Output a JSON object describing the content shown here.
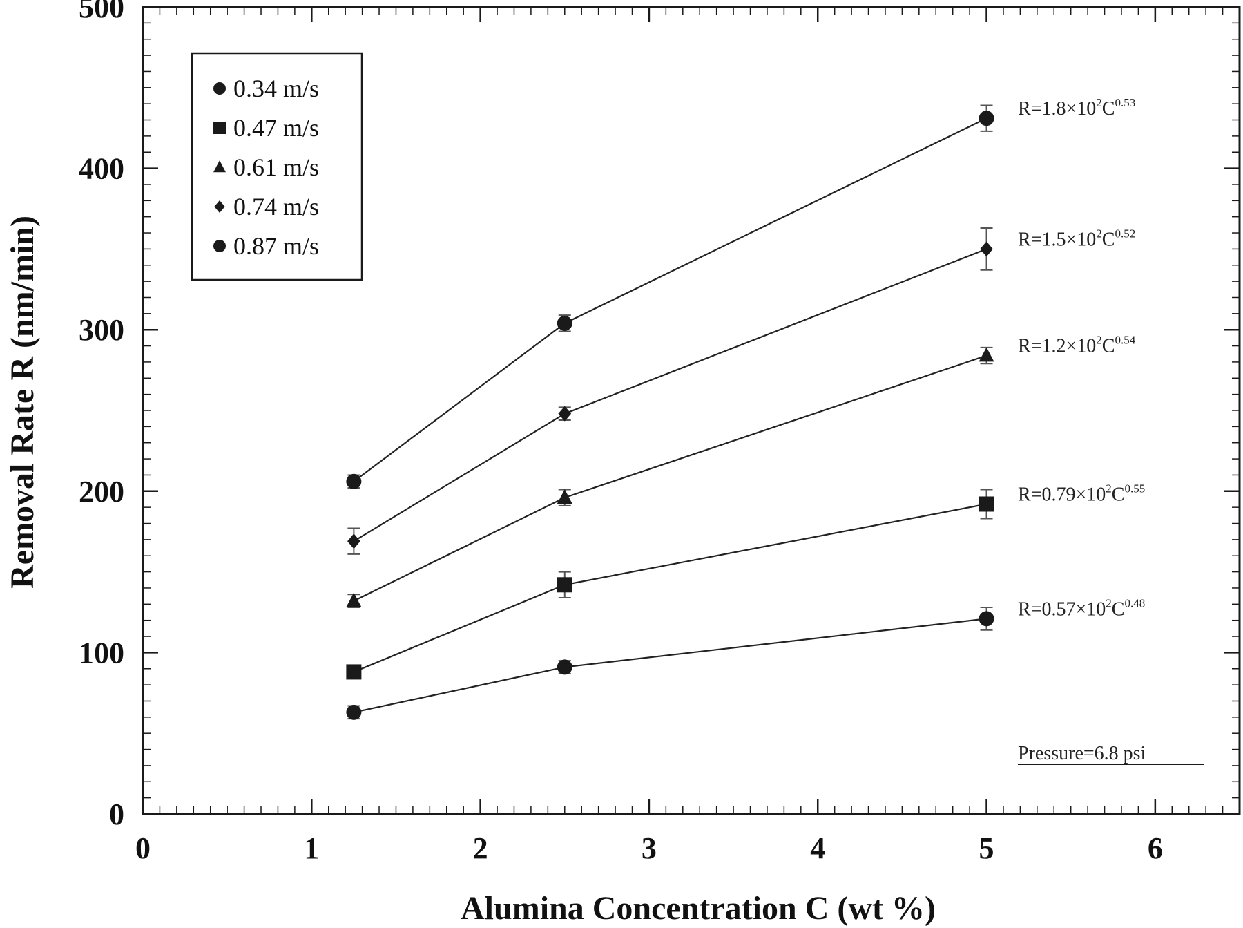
{
  "chart_data": {
    "type": "line",
    "xlabel": "Alumina Concentration C (wt %)",
    "ylabel": "Removal Rate R (nm/min)",
    "xlim": [
      0,
      6.5
    ],
    "ylim": [
      0,
      500
    ],
    "x_ticks": [
      0,
      1,
      2,
      3,
      4,
      5,
      6
    ],
    "y_ticks": [
      0,
      100,
      200,
      300,
      400,
      500
    ],
    "x_tick_labels": [
      "0",
      "1",
      "2",
      "3",
      "4",
      "5",
      "6"
    ],
    "y_tick_labels": [
      "0",
      "100",
      "200",
      "300",
      "400",
      "500"
    ],
    "grid": false,
    "legend_position": "top-left",
    "x": [
      1.25,
      2.5,
      5.0
    ],
    "series": [
      {
        "name": "0.34 m/s",
        "marker": "circle",
        "values": [
          63,
          91,
          121
        ],
        "errors": [
          4,
          4,
          7
        ],
        "fit_prefix": "R=0.57×10",
        "fit_exp1": "2",
        "fit_mid": "C",
        "fit_exp2": "0.48"
      },
      {
        "name": "0.47 m/s",
        "marker": "square",
        "values": [
          88,
          142,
          192
        ],
        "errors": [
          4,
          8,
          9
        ],
        "fit_prefix": "R=0.79×10",
        "fit_exp1": "2",
        "fit_mid": "C",
        "fit_exp2": "0.55"
      },
      {
        "name": "0.61 m/s",
        "marker": "triangle",
        "values": [
          132,
          196,
          284
        ],
        "errors": [
          4,
          5,
          5
        ],
        "fit_prefix": "R=1.2×10",
        "fit_exp1": "2",
        "fit_mid": "C",
        "fit_exp2": "0.54"
      },
      {
        "name": "0.74 m/s",
        "marker": "diamond",
        "values": [
          169,
          248,
          350
        ],
        "errors": [
          8,
          4,
          13
        ],
        "fit_prefix": "R=1.5×10",
        "fit_exp1": "2",
        "fit_mid": "C",
        "fit_exp2": "0.52"
      },
      {
        "name": "0.87 m/s",
        "marker": "circle",
        "values": [
          206,
          304,
          431
        ],
        "errors": [
          4,
          5,
          8
        ],
        "fit_prefix": "R=1.8×10",
        "fit_exp1": "2",
        "fit_mid": "C",
        "fit_exp2": "0.53"
      }
    ],
    "annotation": "Pressure=6.8 psi",
    "colors": {
      "ink": "#1a1a1a",
      "background": "#ffffff"
    }
  }
}
